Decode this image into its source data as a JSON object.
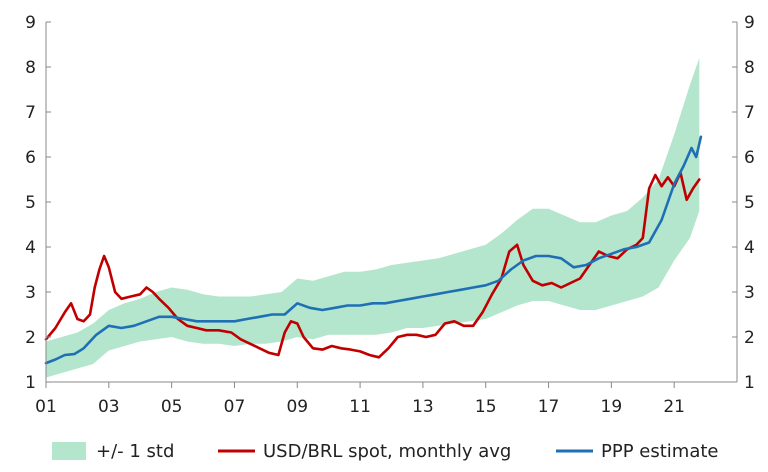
{
  "chart_data": {
    "type": "line",
    "title": "",
    "xlabel": "",
    "ylabel": "",
    "ylim": [
      1,
      9
    ],
    "xlim": [
      2001,
      2023
    ],
    "y_ticks": [
      "1",
      "2",
      "3",
      "4",
      "5",
      "6",
      "7",
      "8",
      "9"
    ],
    "x_ticks": [
      {
        "label": "01",
        "year": 2001
      },
      {
        "label": "03",
        "year": 2003
      },
      {
        "label": "05",
        "year": 2005
      },
      {
        "label": "07",
        "year": 2007
      },
      {
        "label": "09",
        "year": 2009
      },
      {
        "label": "11",
        "year": 2011
      },
      {
        "label": "13",
        "year": 2013
      },
      {
        "label": "15",
        "year": 2015
      },
      {
        "label": "17",
        "year": 2017
      },
      {
        "label": "19",
        "year": 2019
      },
      {
        "label": "21",
        "year": 2021
      }
    ],
    "grid": false,
    "secondary_y_axis_mirrored": true,
    "legend_position": "bottom",
    "colors": {
      "band": "#b3e6cc",
      "spot": "#c00000",
      "ppp": "#1f6fb5",
      "axis": "#888888"
    },
    "series": [
      {
        "name": "+/- 1 std",
        "kind": "band",
        "x": [
          2001.0,
          2001.5,
          2002.0,
          2002.5,
          2003.0,
          2003.5,
          2004.0,
          2004.5,
          2005.0,
          2005.5,
          2006.0,
          2006.5,
          2007.0,
          2007.5,
          2008.0,
          2008.5,
          2009.0,
          2009.5,
          2010.0,
          2010.5,
          2011.0,
          2011.5,
          2012.0,
          2012.5,
          2013.0,
          2013.5,
          2014.0,
          2014.5,
          2015.0,
          2015.5,
          2016.0,
          2016.5,
          2017.0,
          2017.5,
          2018.0,
          2018.5,
          2019.0,
          2019.5,
          2020.0,
          2020.5,
          2021.0,
          2021.5,
          2021.8
        ],
        "lower": [
          1.1,
          1.2,
          1.3,
          1.4,
          1.7,
          1.8,
          1.9,
          1.95,
          2.0,
          1.9,
          1.85,
          1.85,
          1.8,
          1.85,
          1.85,
          1.9,
          2.0,
          1.95,
          2.05,
          2.05,
          2.05,
          2.05,
          2.1,
          2.2,
          2.2,
          2.25,
          2.3,
          2.35,
          2.4,
          2.55,
          2.7,
          2.8,
          2.8,
          2.7,
          2.6,
          2.6,
          2.7,
          2.8,
          2.9,
          3.1,
          3.7,
          4.2,
          4.8
        ],
        "upper": [
          1.9,
          2.0,
          2.1,
          2.3,
          2.6,
          2.75,
          2.85,
          3.0,
          3.1,
          3.05,
          2.95,
          2.9,
          2.9,
          2.9,
          2.95,
          3.0,
          3.3,
          3.25,
          3.35,
          3.45,
          3.45,
          3.5,
          3.6,
          3.65,
          3.7,
          3.75,
          3.85,
          3.95,
          4.05,
          4.3,
          4.6,
          4.85,
          4.85,
          4.7,
          4.55,
          4.55,
          4.7,
          4.8,
          5.1,
          5.5,
          6.5,
          7.6,
          8.2
        ]
      },
      {
        "name": "USD/BRL spot, monthly avg",
        "kind": "line",
        "x": [
          2001.0,
          2001.3,
          2001.6,
          2001.8,
          2002.0,
          2002.2,
          2002.4,
          2002.55,
          2002.7,
          2002.85,
          2003.0,
          2003.2,
          2003.4,
          2003.7,
          2004.0,
          2004.2,
          2004.4,
          2004.6,
          2004.9,
          2005.2,
          2005.5,
          2005.8,
          2006.1,
          2006.5,
          2006.9,
          2007.2,
          2007.5,
          2007.8,
          2008.1,
          2008.4,
          2008.6,
          2008.8,
          2009.0,
          2009.2,
          2009.5,
          2009.8,
          2010.1,
          2010.4,
          2010.7,
          2011.0,
          2011.3,
          2011.6,
          2011.9,
          2012.2,
          2012.5,
          2012.8,
          2013.1,
          2013.4,
          2013.7,
          2014.0,
          2014.3,
          2014.6,
          2014.9,
          2015.2,
          2015.5,
          2015.75,
          2016.0,
          2016.2,
          2016.5,
          2016.8,
          2017.1,
          2017.4,
          2017.7,
          2018.0,
          2018.3,
          2018.6,
          2018.9,
          2019.2,
          2019.5,
          2019.8,
          2020.0,
          2020.2,
          2020.4,
          2020.6,
          2020.8,
          2021.0,
          2021.2,
          2021.4,
          2021.6,
          2021.8
        ],
        "y": [
          1.95,
          2.2,
          2.55,
          2.75,
          2.4,
          2.35,
          2.5,
          3.1,
          3.5,
          3.8,
          3.55,
          3.0,
          2.85,
          2.9,
          2.95,
          3.1,
          3.0,
          2.85,
          2.65,
          2.4,
          2.25,
          2.2,
          2.15,
          2.15,
          2.1,
          1.95,
          1.85,
          1.75,
          1.65,
          1.6,
          2.1,
          2.35,
          2.3,
          2.0,
          1.75,
          1.72,
          1.8,
          1.75,
          1.72,
          1.68,
          1.6,
          1.55,
          1.75,
          2.0,
          2.05,
          2.05,
          2.0,
          2.05,
          2.3,
          2.35,
          2.25,
          2.25,
          2.55,
          2.95,
          3.3,
          3.9,
          4.05,
          3.6,
          3.25,
          3.15,
          3.2,
          3.1,
          3.2,
          3.3,
          3.6,
          3.9,
          3.8,
          3.75,
          3.95,
          4.05,
          4.2,
          5.3,
          5.6,
          5.35,
          5.55,
          5.35,
          5.65,
          5.05,
          5.3,
          5.5
        ]
      },
      {
        "name": "PPP estimate",
        "kind": "line",
        "x": [
          2001.0,
          2001.3,
          2001.6,
          2001.9,
          2002.2,
          2002.6,
          2003.0,
          2003.4,
          2003.8,
          2004.2,
          2004.6,
          2005.0,
          2005.4,
          2005.8,
          2006.2,
          2006.6,
          2007.0,
          2007.4,
          2007.8,
          2008.2,
          2008.6,
          2009.0,
          2009.4,
          2009.8,
          2010.2,
          2010.6,
          2011.0,
          2011.4,
          2011.8,
          2012.2,
          2012.6,
          2013.0,
          2013.4,
          2013.8,
          2014.2,
          2014.6,
          2015.0,
          2015.4,
          2015.8,
          2016.2,
          2016.6,
          2017.0,
          2017.4,
          2017.8,
          2018.2,
          2018.6,
          2019.0,
          2019.4,
          2019.8,
          2020.2,
          2020.6,
          2021.0,
          2021.3,
          2021.55,
          2021.7,
          2021.85
        ],
        "y": [
          1.42,
          1.5,
          1.6,
          1.62,
          1.75,
          2.05,
          2.25,
          2.2,
          2.25,
          2.35,
          2.45,
          2.45,
          2.4,
          2.35,
          2.35,
          2.35,
          2.35,
          2.4,
          2.45,
          2.5,
          2.5,
          2.75,
          2.65,
          2.6,
          2.65,
          2.7,
          2.7,
          2.75,
          2.75,
          2.8,
          2.85,
          2.9,
          2.95,
          3.0,
          3.05,
          3.1,
          3.15,
          3.25,
          3.5,
          3.7,
          3.8,
          3.8,
          3.75,
          3.55,
          3.6,
          3.75,
          3.85,
          3.95,
          4.0,
          4.1,
          4.6,
          5.4,
          5.8,
          6.2,
          6.0,
          6.45
        ]
      }
    ]
  }
}
